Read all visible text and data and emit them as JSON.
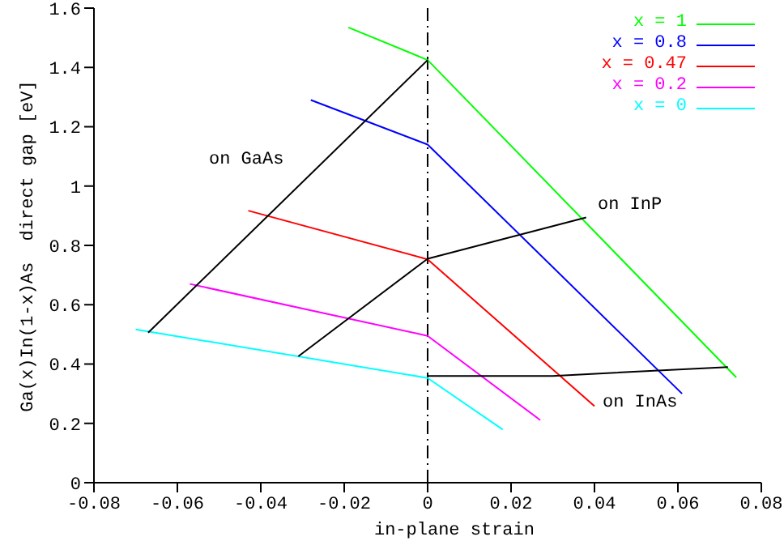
{
  "chart_data": {
    "type": "line",
    "xlabel": "in-plane strain",
    "ylabel": "Ga(x)In(1-x)As  direct gap [eV]",
    "xlim": [
      -0.08,
      0.08
    ],
    "xticks": [
      -0.08,
      -0.06,
      -0.04,
      -0.02,
      0,
      0.02,
      0.04,
      0.06,
      0.08
    ],
    "ylim": [
      0,
      1.6
    ],
    "yticks": [
      0,
      0.2,
      0.4,
      0.6,
      0.8,
      1,
      1.2,
      1.4,
      1.6
    ],
    "legend": "top right",
    "marker": "none",
    "series": [
      {
        "name": "x = 1",
        "color": "#00ff00",
        "x": [
          -0.019,
          0,
          0.074
        ],
        "values": [
          1.535,
          1.425,
          0.355
        ]
      },
      {
        "name": "x = 0.8",
        "color": "#0000ff",
        "x": [
          -0.028,
          0,
          0.061
        ],
        "values": [
          1.29,
          1.14,
          0.3
        ]
      },
      {
        "name": "x = 0.47",
        "color": "#ff0000",
        "x": [
          -0.043,
          0,
          0.04
        ],
        "values": [
          0.917,
          0.753,
          0.258
        ]
      },
      {
        "name": "x = 0.2",
        "color": "#ff00ff",
        "x": [
          -0.057,
          0,
          0.027
        ],
        "values": [
          0.67,
          0.495,
          0.211
        ]
      },
      {
        "name": "x = 0",
        "color": "#00ffff",
        "x": [
          -0.07,
          0,
          0.018
        ],
        "values": [
          0.517,
          0.353,
          0.179
        ]
      },
      {
        "color": "#000000",
        "x": [
          -0.067,
          0
        ],
        "values": [
          0.506,
          1.425
        ]
      },
      {
        "color": "#000000",
        "x": [
          -0.031,
          0,
          0.038
        ],
        "values": [
          0.426,
          0.755,
          0.894
        ]
      },
      {
        "color": "#000000",
        "x": [
          0,
          0.03,
          0.072
        ],
        "values": [
          0.36,
          0.36,
          0.39
        ]
      }
    ],
    "ref_lines": [
      {
        "axis": "x",
        "value": 0,
        "color": "#000000",
        "line_style": "dashed"
      }
    ],
    "annotations": [
      "on GaAs",
      "on InP",
      "on InAs"
    ]
  }
}
